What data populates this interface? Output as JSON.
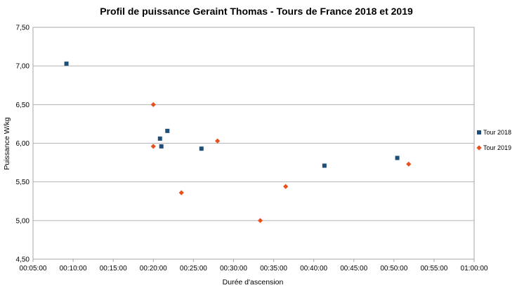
{
  "chart_data": {
    "type": "scatter",
    "title": "Profil de puissance Geraint Thomas - Tours de France 2018 et 2019",
    "xlabel": "Durée d'ascension",
    "ylabel": "Puissance W/kg",
    "xlim": [
      "00:05:00",
      "01:00:00"
    ],
    "ylim": [
      4.5,
      7.5
    ],
    "x_ticks": [
      "00:05:00",
      "00:10:00",
      "00:15:00",
      "00:20:00",
      "00:25:00",
      "00:30:00",
      "00:35:00",
      "00:40:00",
      "00:45:00",
      "00:50:00",
      "00:55:00",
      "01:00:00"
    ],
    "y_ticks": [
      "4,50",
      "5,00",
      "5,50",
      "6,00",
      "6,50",
      "7,00",
      "7,50"
    ],
    "grid": "horizontal",
    "legend_position": "right",
    "series": [
      {
        "name": "Tour 2018",
        "color": "#1f4e79",
        "marker": "square",
        "points": [
          {
            "x": "00:09:10",
            "y": 7.03
          },
          {
            "x": "00:20:50",
            "y": 6.06
          },
          {
            "x": "00:21:45",
            "y": 6.16
          },
          {
            "x": "00:21:00",
            "y": 5.96
          },
          {
            "x": "00:26:00",
            "y": 5.93
          },
          {
            "x": "00:41:20",
            "y": 5.71
          },
          {
            "x": "00:50:25",
            "y": 5.81
          }
        ]
      },
      {
        "name": "Tour 2019",
        "color": "#e8501e",
        "marker": "diamond",
        "points": [
          {
            "x": "00:20:00",
            "y": 6.5
          },
          {
            "x": "00:20:00",
            "y": 5.96
          },
          {
            "x": "00:23:30",
            "y": 5.36
          },
          {
            "x": "00:28:00",
            "y": 6.03
          },
          {
            "x": "00:33:20",
            "y": 5.0
          },
          {
            "x": "00:36:30",
            "y": 5.44
          },
          {
            "x": "00:51:50",
            "y": 5.73
          }
        ]
      }
    ]
  }
}
